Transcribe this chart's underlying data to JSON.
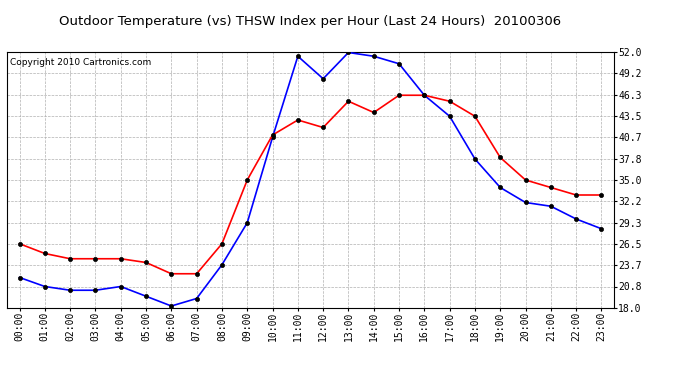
{
  "title": "Outdoor Temperature (vs) THSW Index per Hour (Last 24 Hours)  20100306",
  "copyright": "Copyright 2010 Cartronics.com",
  "hours": [
    "00:00",
    "01:00",
    "02:00",
    "03:00",
    "04:00",
    "05:00",
    "06:00",
    "07:00",
    "08:00",
    "09:00",
    "10:00",
    "11:00",
    "12:00",
    "13:00",
    "14:00",
    "15:00",
    "16:00",
    "17:00",
    "18:00",
    "19:00",
    "20:00",
    "21:00",
    "22:00",
    "23:00"
  ],
  "blue_data": [
    22.0,
    20.8,
    20.3,
    20.3,
    20.8,
    19.5,
    18.2,
    19.2,
    23.7,
    29.3,
    40.7,
    51.5,
    48.5,
    52.0,
    51.5,
    50.5,
    46.3,
    43.5,
    37.8,
    34.0,
    32.0,
    31.5,
    29.8,
    28.5
  ],
  "red_data": [
    26.5,
    25.2,
    24.5,
    24.5,
    24.5,
    24.0,
    22.5,
    22.5,
    26.5,
    35.0,
    41.0,
    43.0,
    42.0,
    45.5,
    44.0,
    46.3,
    46.3,
    45.5,
    43.5,
    38.0,
    35.0,
    34.0,
    33.0,
    33.0
  ],
  "yticks": [
    18.0,
    20.8,
    23.7,
    26.5,
    29.3,
    32.2,
    35.0,
    37.8,
    40.7,
    43.5,
    46.3,
    49.2,
    52.0
  ],
  "ymin": 18.0,
  "ymax": 52.0,
  "blue_color": "#0000ff",
  "red_color": "#ff0000",
  "marker_color": "#000000",
  "bg_color": "#ffffff",
  "plot_bg_color": "#ffffff",
  "grid_color": "#b0b0b0",
  "title_fontsize": 9.5,
  "copyright_fontsize": 6.5,
  "tick_fontsize": 7,
  "marker_size": 3
}
